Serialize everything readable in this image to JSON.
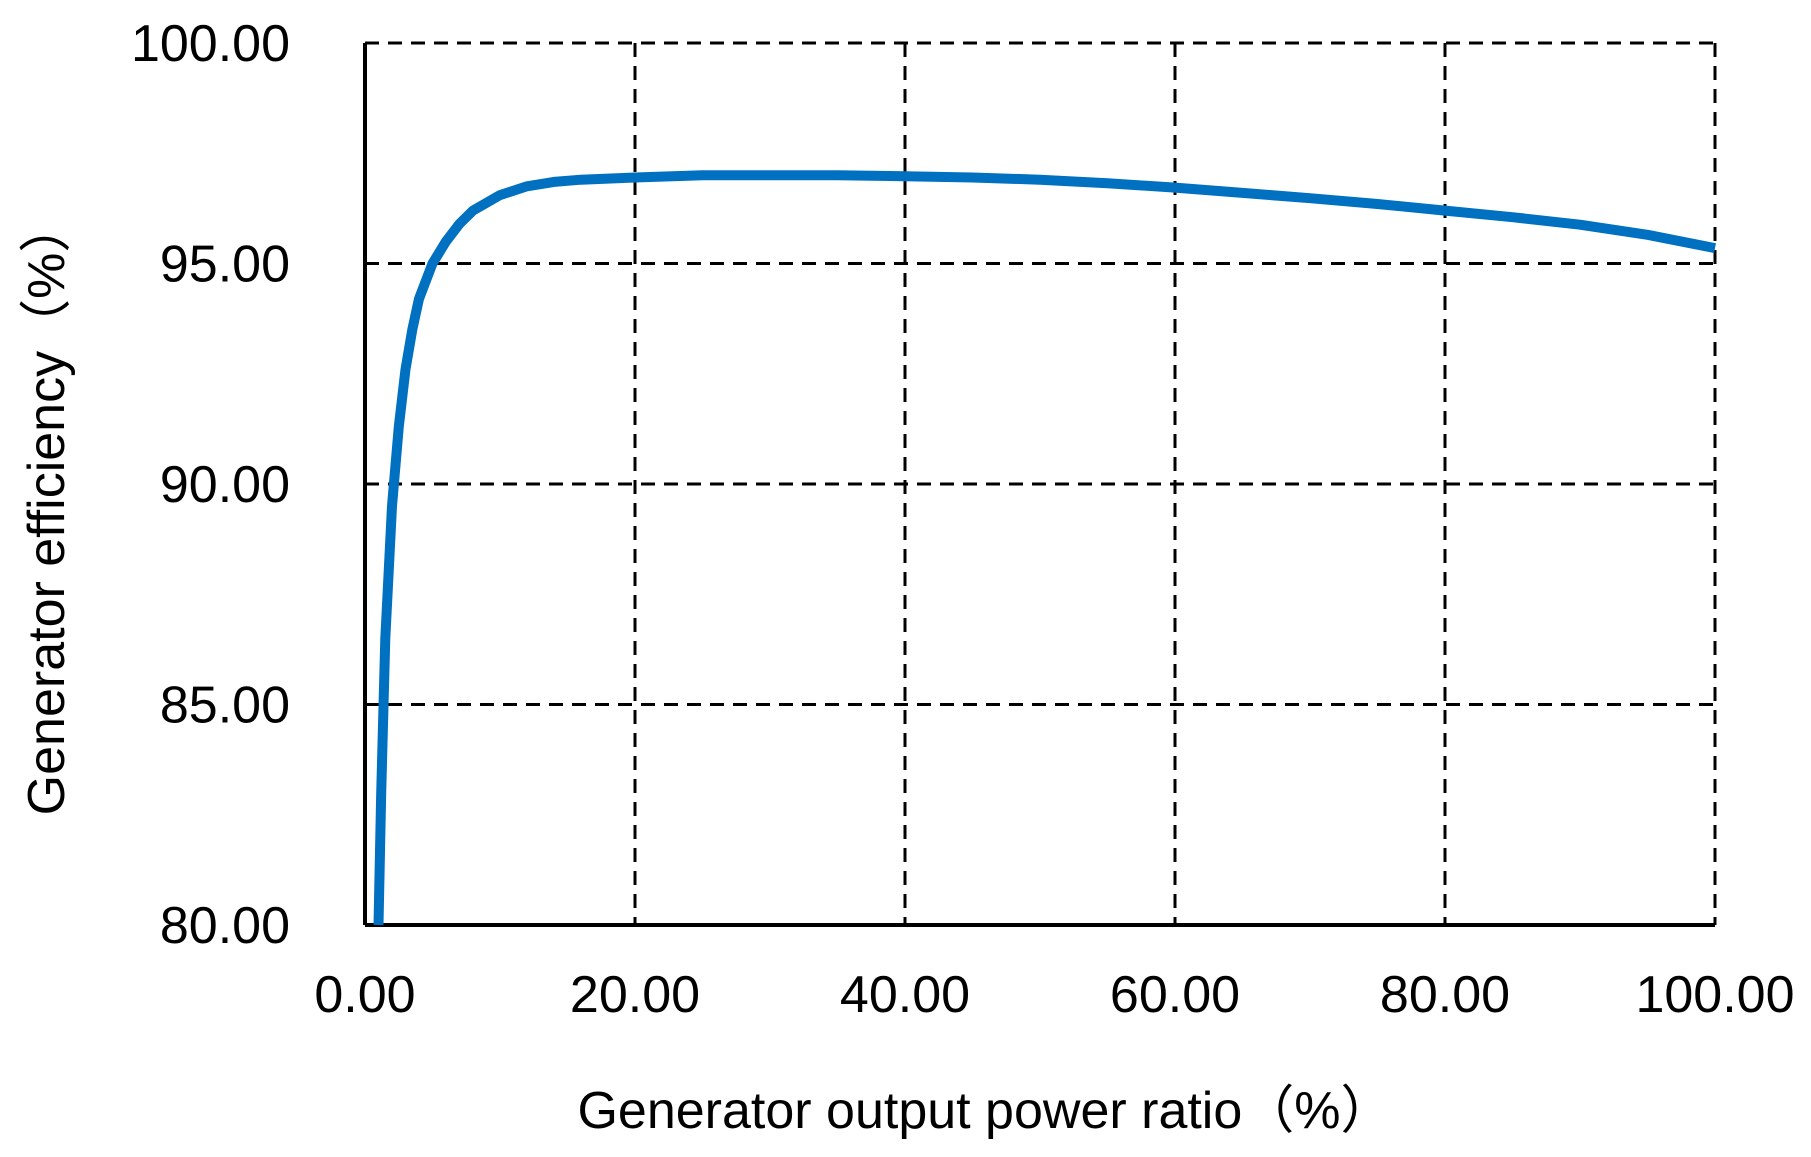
{
  "chart_data": {
    "type": "line",
    "title": "",
    "xlabel": "Generator output power ratio（%）",
    "ylabel": "Generator efficiency（%）",
    "xlim": [
      0,
      100
    ],
    "ylim": [
      80,
      100
    ],
    "x_ticks": [
      "0.00",
      "20.00",
      "40.00",
      "60.00",
      "80.00",
      "100.00"
    ],
    "y_ticks": [
      "80.00",
      "85.00",
      "90.00",
      "95.00",
      "100.00"
    ],
    "x_tick_values": [
      0,
      20,
      40,
      60,
      80,
      100
    ],
    "y_tick_values": [
      80,
      85,
      90,
      95,
      100
    ],
    "grid": true,
    "legend": "none",
    "colors": {
      "series": "#0070C0",
      "grid": "#000000",
      "axis": "#000000"
    },
    "series": [
      {
        "x": [
          1.0,
          1.2,
          1.5,
          2.0,
          2.5,
          3.0,
          3.5,
          4.0,
          5.0,
          6.0,
          7.0,
          8.0,
          10.0,
          12.0,
          14.0,
          16.0,
          20.0,
          25.0,
          30.0,
          35.0,
          40.0,
          45.0,
          50.0,
          55.0,
          60.0,
          65.0,
          70.0,
          75.0,
          80.0,
          85.0,
          90.0,
          95.0,
          100.0
        ],
        "y": [
          80.0,
          83.0,
          86.5,
          89.5,
          91.3,
          92.6,
          93.5,
          94.2,
          95.0,
          95.5,
          95.9,
          96.2,
          96.55,
          96.75,
          96.85,
          96.9,
          96.95,
          97.0,
          97.0,
          97.0,
          96.98,
          96.95,
          96.9,
          96.82,
          96.72,
          96.6,
          96.48,
          96.35,
          96.2,
          96.05,
          95.88,
          95.65,
          95.35
        ]
      }
    ]
  }
}
